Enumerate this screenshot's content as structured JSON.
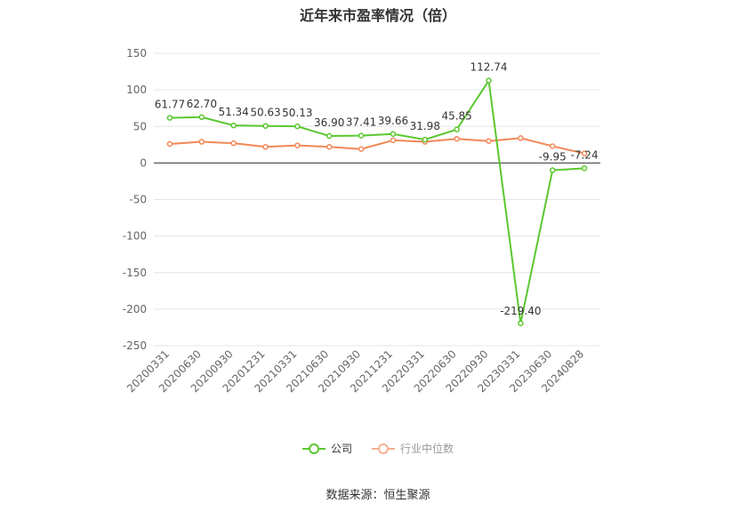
{
  "chart_data": {
    "type": "line",
    "title": "近年来市盈率情况（倍）",
    "categories": [
      "20200331",
      "20200630",
      "20200930",
      "20201231",
      "20210331",
      "20210630",
      "20210930",
      "20211231",
      "20220331",
      "20220630",
      "20220930",
      "20230331",
      "20230630",
      "20240828"
    ],
    "series": [
      {
        "name": "公司",
        "color": "#5bc72e",
        "values": [
          61.77,
          62.7,
          51.34,
          50.63,
          50.13,
          36.9,
          37.41,
          39.66,
          31.98,
          45.85,
          112.74,
          -219.4,
          -9.95,
          -7.24
        ],
        "labels": [
          "61.77",
          "62.70",
          "51.34",
          "50.63",
          "50.13",
          "36.90",
          "37.41",
          "39.66",
          "31.98",
          "45.85",
          "112.74",
          "-219.40",
          "-9.95",
          "-7.24"
        ]
      },
      {
        "name": "行业中位数",
        "color": "#f08857",
        "values": [
          26,
          29,
          27,
          22,
          24,
          22,
          19,
          31,
          29,
          33,
          30,
          34,
          23,
          13
        ]
      }
    ],
    "ylim": [
      -250,
      150
    ],
    "yticks": [
      150,
      100,
      50,
      0,
      -50,
      -100,
      -150,
      -200,
      -250
    ],
    "ytick_labels": [
      "150",
      "100",
      "50",
      "0",
      "-50",
      "-100",
      "-150",
      "-200",
      "-250"
    ],
    "grid": true,
    "legend_position": "bottom"
  },
  "source_text": "数据来源：恒生聚源"
}
